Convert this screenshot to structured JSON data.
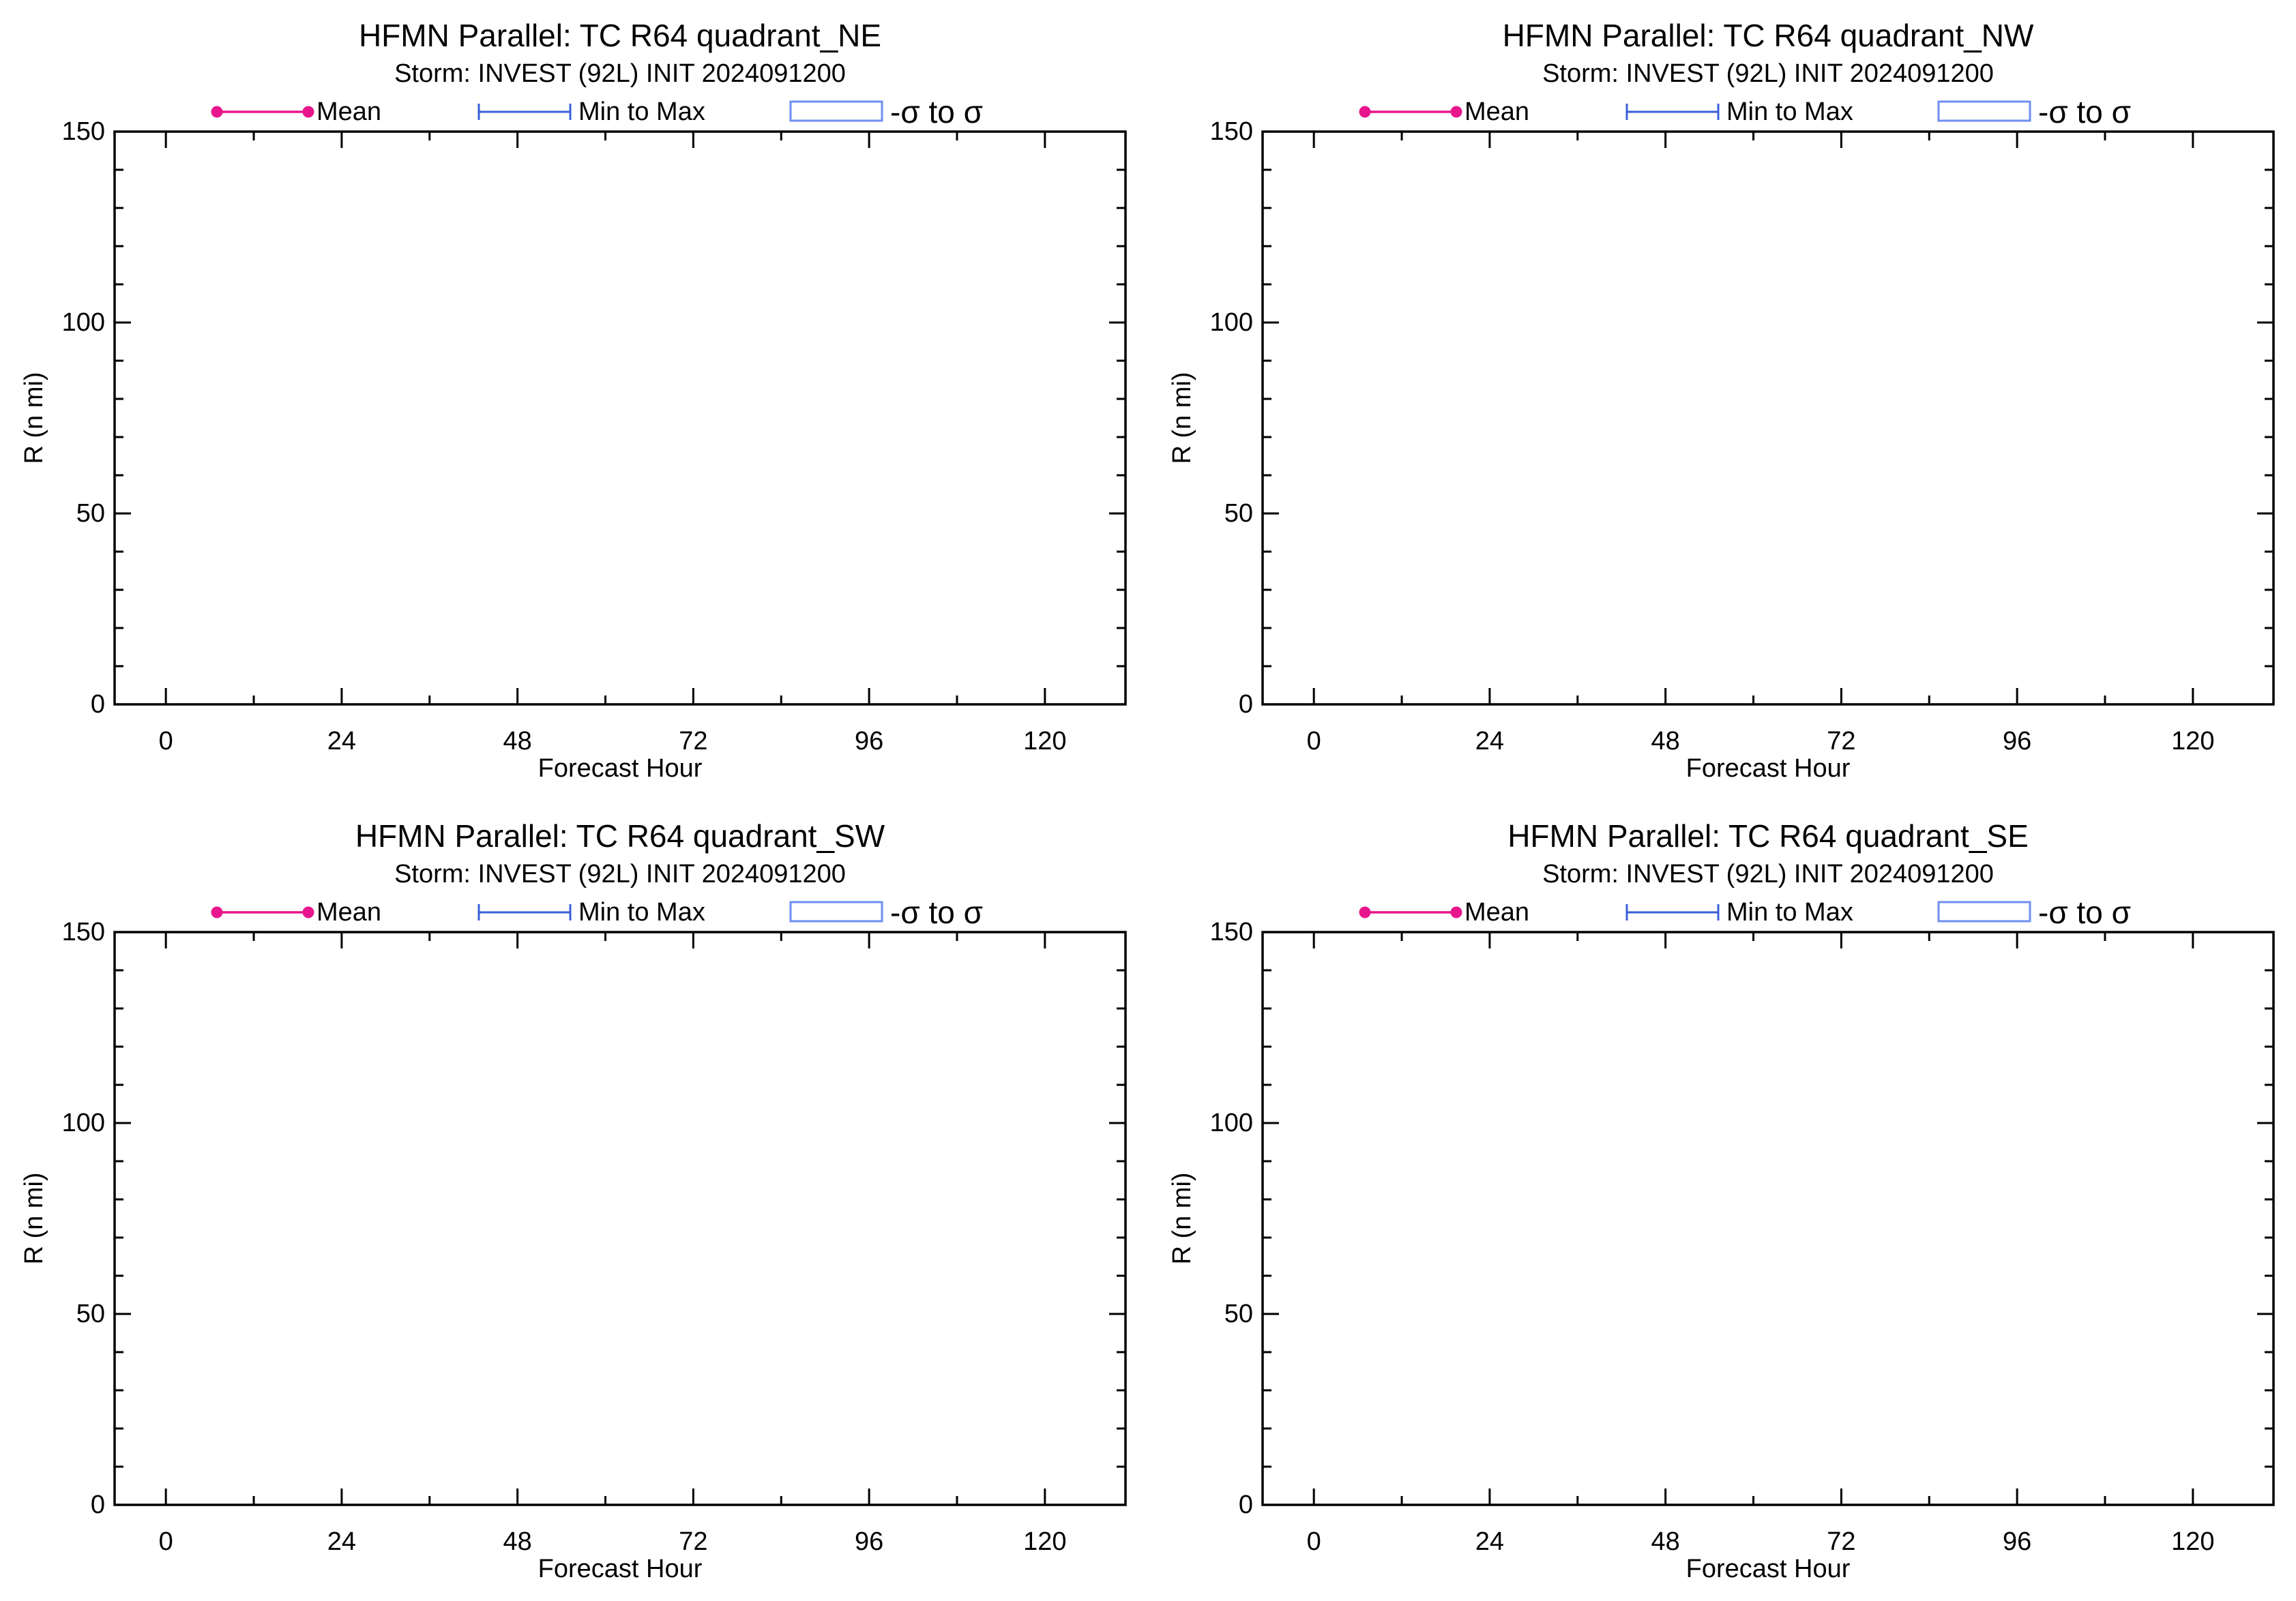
{
  "figure": {
    "colors": {
      "mean": "#e8168c",
      "minmax": "#3a5fd8",
      "sigma": "#6f8ff0",
      "axes": "#000000",
      "background": "#ffffff"
    }
  },
  "chart_data": [
    {
      "type": "line",
      "title": "HFMN Parallel: TC  R64 quadrant_NE",
      "subtitle": "Storm: INVEST (92L) INIT 2024091200",
      "xlabel": "Forecast Hour",
      "ylabel": "R (n mi)",
      "xlim": [
        -7,
        131
      ],
      "ylim": [
        0,
        150
      ],
      "xticks": [
        0,
        24,
        48,
        72,
        96,
        120
      ],
      "xticklabels": [
        "0",
        "24",
        "48",
        "72",
        "96",
        "120"
      ],
      "x_minor_step": 12,
      "yticks": [
        0,
        50,
        100,
        150
      ],
      "yticklabels": [
        "0",
        "50",
        "100",
        "150"
      ],
      "y_minor_step": 10,
      "grid": false,
      "legend_position": "top",
      "legend": [
        {
          "label": "Mean",
          "style": "line-dots",
          "color": "#e8168c"
        },
        {
          "label": "Min to Max",
          "style": "errorbar",
          "color": "#3a5fd8"
        },
        {
          "label": "-σ to σ",
          "style": "box",
          "color": "#6f8ff0"
        }
      ],
      "series": []
    },
    {
      "type": "line",
      "title": "HFMN Parallel: TC  R64 quadrant_NW",
      "subtitle": "Storm: INVEST (92L) INIT 2024091200",
      "xlabel": "Forecast Hour",
      "ylabel": "R (n mi)",
      "xlim": [
        -7,
        131
      ],
      "ylim": [
        0,
        150
      ],
      "xticks": [
        0,
        24,
        48,
        72,
        96,
        120
      ],
      "xticklabels": [
        "0",
        "24",
        "48",
        "72",
        "96",
        "120"
      ],
      "x_minor_step": 12,
      "yticks": [
        0,
        50,
        100,
        150
      ],
      "yticklabels": [
        "0",
        "50",
        "100",
        "150"
      ],
      "y_minor_step": 10,
      "grid": false,
      "legend_position": "top",
      "legend": [
        {
          "label": "Mean",
          "style": "line-dots",
          "color": "#e8168c"
        },
        {
          "label": "Min to Max",
          "style": "errorbar",
          "color": "#3a5fd8"
        },
        {
          "label": "-σ to σ",
          "style": "box",
          "color": "#6f8ff0"
        }
      ],
      "series": []
    },
    {
      "type": "line",
      "title": "HFMN Parallel: TC  R64 quadrant_SW",
      "subtitle": "Storm: INVEST (92L) INIT 2024091200",
      "xlabel": "Forecast Hour",
      "ylabel": "R (n mi)",
      "xlim": [
        -7,
        131
      ],
      "ylim": [
        0,
        150
      ],
      "xticks": [
        0,
        24,
        48,
        72,
        96,
        120
      ],
      "xticklabels": [
        "0",
        "24",
        "48",
        "72",
        "96",
        "120"
      ],
      "x_minor_step": 12,
      "yticks": [
        0,
        50,
        100,
        150
      ],
      "yticklabels": [
        "0",
        "50",
        "100",
        "150"
      ],
      "y_minor_step": 10,
      "grid": false,
      "legend_position": "top",
      "legend": [
        {
          "label": "Mean",
          "style": "line-dots",
          "color": "#e8168c"
        },
        {
          "label": "Min to Max",
          "style": "errorbar",
          "color": "#3a5fd8"
        },
        {
          "label": "-σ to σ",
          "style": "box",
          "color": "#6f8ff0"
        }
      ],
      "series": []
    },
    {
      "type": "line",
      "title": "HFMN Parallel: TC  R64 quadrant_SE",
      "subtitle": "Storm: INVEST (92L) INIT 2024091200",
      "xlabel": "Forecast Hour",
      "ylabel": "R (n mi)",
      "xlim": [
        -7,
        131
      ],
      "ylim": [
        0,
        150
      ],
      "xticks": [
        0,
        24,
        48,
        72,
        96,
        120
      ],
      "xticklabels": [
        "0",
        "24",
        "48",
        "72",
        "96",
        "120"
      ],
      "x_minor_step": 12,
      "yticks": [
        0,
        50,
        100,
        150
      ],
      "yticklabels": [
        "0",
        "50",
        "100",
        "150"
      ],
      "y_minor_step": 10,
      "grid": false,
      "legend_position": "top",
      "legend": [
        {
          "label": "Mean",
          "style": "line-dots",
          "color": "#e8168c"
        },
        {
          "label": "Min to Max",
          "style": "errorbar",
          "color": "#3a5fd8"
        },
        {
          "label": "-σ to σ",
          "style": "box",
          "color": "#6f8ff0"
        }
      ],
      "series": []
    }
  ]
}
